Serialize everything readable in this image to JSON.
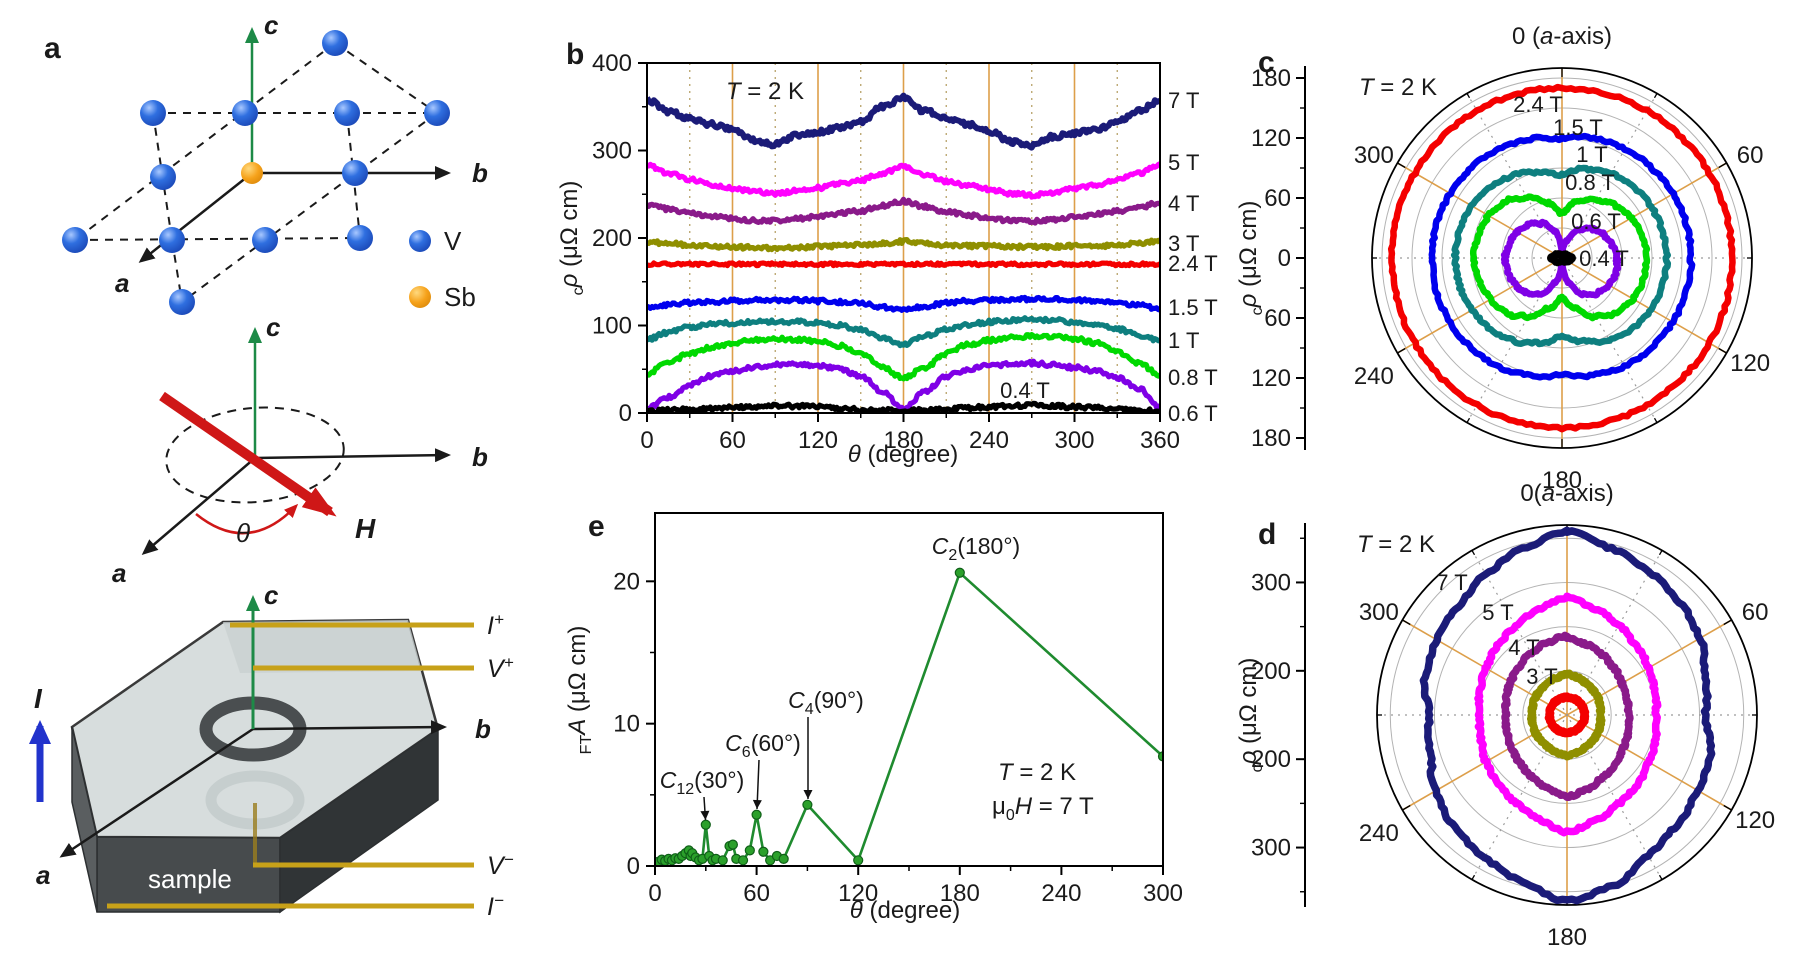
{
  "panel_a": {
    "label": "a",
    "legend": {
      "v_label": "V",
      "sb_label": "Sb"
    },
    "axis_a": "a",
    "axis_b": "b",
    "axis_c": "c",
    "field_vector_label": "H",
    "angle_label": "θ",
    "current_label": "I",
    "sample_label": "sample",
    "leads": [
      {
        "main": "I",
        "sup": "+"
      },
      {
        "main": "V",
        "sup": "+"
      },
      {
        "main": "V",
        "sup": "−"
      },
      {
        "main": "I",
        "sup": "−"
      }
    ],
    "colors": {
      "v_atom": "#2f6fe0",
      "sb_atom": "#f6a21b",
      "c_axis": "#1d8a47",
      "h_vector": "#cf1717",
      "current": "#2233cc",
      "lead": "#c7a119"
    }
  },
  "chart_data": [
    {
      "id": "b",
      "panel_label": "b",
      "type": "line",
      "title": {
        "it": "T",
        "rest": " = 2 K"
      },
      "xlabel": {
        "it": "θ",
        "rest": " (degree)"
      },
      "ylabel": {
        "it": "ρ",
        "sub": "c",
        "rest": " (μΩ cm)"
      },
      "xlim": [
        0,
        360
      ],
      "ylim": [
        0,
        400
      ],
      "xticks": [
        0,
        60,
        120,
        180,
        240,
        300,
        360
      ],
      "yticks": [
        0,
        100,
        200,
        300,
        400
      ],
      "grid": {
        "solid": [
          60,
          120,
          180,
          240,
          300
        ],
        "dotted": [
          30,
          90,
          150,
          210,
          270,
          330
        ],
        "solid_color": "#dd9f4a",
        "dotted_color": "#b8a26a"
      },
      "x_step": 15,
      "series": [
        {
          "name": "7 T",
          "color": "#1b1b78",
          "values": [
            358,
            345,
            337,
            330,
            324,
            312,
            307,
            318,
            321,
            326,
            333,
            350,
            360,
            345,
            337,
            330,
            322,
            310,
            306,
            316,
            320,
            324,
            333,
            345,
            357
          ]
        },
        {
          "name": "5 T",
          "color": "#ff00ff",
          "values": [
            283,
            274,
            267,
            261,
            257,
            253,
            251,
            254,
            257,
            262,
            266,
            274,
            282,
            272,
            265,
            260,
            256,
            251,
            249,
            252,
            256,
            261,
            266,
            274,
            283
          ]
        },
        {
          "name": "4 T",
          "color": "#8a1a8a",
          "values": [
            238,
            233,
            229,
            225,
            222,
            220,
            220,
            222,
            224,
            228,
            231,
            237,
            242,
            236,
            230,
            226,
            223,
            220,
            219,
            221,
            224,
            227,
            231,
            235,
            240
          ]
        },
        {
          "name": "3 T",
          "color": "#8f8f00",
          "values": [
            196,
            194,
            192,
            191,
            190,
            189,
            188,
            189,
            190,
            191,
            192,
            194,
            196,
            194,
            192,
            191,
            191,
            190,
            190,
            190,
            191,
            191,
            192,
            194,
            196
          ]
        },
        {
          "name": "2.4 T",
          "color": "#f40000",
          "values": [
            170,
            170,
            170,
            170,
            170,
            170,
            170,
            170,
            170,
            170,
            170,
            170,
            170,
            170,
            170,
            170,
            170,
            170,
            170,
            170,
            170,
            170,
            170,
            170,
            170
          ]
        },
        {
          "name": "1.5 T",
          "color": "#0000ee",
          "values": [
            120,
            124,
            126,
            127,
            128,
            129,
            129,
            129,
            128,
            127,
            125,
            121,
            117,
            122,
            126,
            128,
            129,
            130,
            130,
            130,
            129,
            128,
            126,
            123,
            119
          ]
        },
        {
          "name": "1 T",
          "color": "#0e7f7f",
          "values": [
            84,
            92,
            98,
            101,
            103,
            104,
            105,
            104,
            103,
            100,
            95,
            86,
            78,
            88,
            96,
            101,
            104,
            106,
            107,
            106,
            104,
            101,
            96,
            89,
            83
          ]
        },
        {
          "name": "0.8 T",
          "color": "#00d900",
          "values": [
            45,
            58,
            68,
            75,
            80,
            83,
            85,
            84,
            82,
            77,
            68,
            52,
            40,
            52,
            68,
            78,
            83,
            86,
            88,
            87,
            85,
            80,
            70,
            57,
            44
          ]
        },
        {
          "name": "0.6 T",
          "color": "#7f00e6",
          "values": [
            5,
            18,
            32,
            42,
            48,
            52,
            55,
            56,
            54,
            50,
            42,
            25,
            4,
            25,
            42,
            50,
            54,
            56,
            57,
            55,
            52,
            48,
            40,
            28,
            6
          ]
        },
        {
          "name": "0.4 T",
          "color": "#000000",
          "values": [
            2,
            3,
            4,
            5,
            6,
            7,
            8,
            8,
            7,
            5,
            4,
            3,
            2,
            3,
            4,
            6,
            7,
            8,
            9,
            8,
            7,
            6,
            4,
            3,
            2
          ]
        }
      ]
    },
    {
      "id": "c",
      "panel_label": "c",
      "type": "polar",
      "title": {
        "it": "T",
        "rest": " = 2 K"
      },
      "ylabel": {
        "it": "ρ",
        "sub": "c",
        "rest": " (μΩ cm)"
      },
      "top_label": {
        "pre": "0 (",
        "it": "a",
        "post": "-axis)"
      },
      "center_value": 0,
      "boundary_value": 190,
      "radial_ticks": [
        60,
        120,
        180
      ],
      "radial_minor": [
        30,
        90,
        150
      ],
      "center_tick_label": "0",
      "grid_circles": [
        30,
        60,
        90,
        120,
        150,
        180
      ],
      "angle_labels": [
        "60",
        "120",
        "180",
        "240",
        "300"
      ],
      "series_names": [
        "2.4 T",
        "1.5 T",
        "1 T",
        "0.8 T",
        "0.6 T",
        "0.4 T"
      ],
      "series_source": "same data as panel b series",
      "curve_labels": [
        {
          "text": "2.4 T",
          "color": "#f40000"
        },
        {
          "text": "1.5 T",
          "color": "#2222dd"
        },
        {
          "text": "1 T",
          "color": "#0e7f7f"
        },
        {
          "text": "0.8 T",
          "color": "#00cc00"
        },
        {
          "text": "0.6 T",
          "color": "#7f00e6"
        },
        {
          "text": "0.4 T",
          "color": "#000000"
        }
      ]
    },
    {
      "id": "d",
      "panel_label": "d",
      "type": "polar",
      "title": {
        "it": "T",
        "rest": " = 2 K"
      },
      "ylabel": {
        "it": "ρ",
        "sub": "c",
        "rest": " (μΩ cm)"
      },
      "top_label": {
        "pre": "0(",
        "it": "a",
        "post": "-axis)"
      },
      "center_value": 150,
      "boundary_value": 365,
      "radial_ticks": [
        200,
        300
      ],
      "radial_minor": [
        250,
        350
      ],
      "center_tick_label": "",
      "grid_circles": [
        200,
        250,
        300,
        350
      ],
      "angle_labels": [
        "60",
        "120",
        "180",
        "240",
        "300"
      ],
      "series_names": [
        "7 T",
        "5 T",
        "4 T",
        "3 T",
        "2.4 T"
      ],
      "series_source": "same data as panel b series",
      "curve_labels": [
        {
          "text": "7 T",
          "color": "#5f5fc8"
        },
        {
          "text": "5 T",
          "color": "#ff00ff"
        },
        {
          "text": "4 T",
          "color": "#8a1a8a"
        },
        {
          "text": "3 T",
          "color": "#8f8f00"
        }
      ]
    },
    {
      "id": "e",
      "panel_label": "e",
      "type": "line-scatter",
      "color": "#1f8b2f",
      "marker_fill": "#2ba02b",
      "marker_edge": "#0f5f18",
      "xlabel": {
        "it": "θ",
        "rest": " (degree)"
      },
      "ylabel": {
        "it": "A",
        "sub": "FT",
        "rest": " (μΩ cm)"
      },
      "xlim": [
        0,
        300
      ],
      "ylim": [
        0,
        24.8
      ],
      "xticks": [
        0,
        60,
        120,
        180,
        240,
        300
      ],
      "yticks": [
        0,
        10,
        20
      ],
      "points": [
        [
          2,
          0.3
        ],
        [
          4,
          0.45
        ],
        [
          6,
          0.35
        ],
        [
          8,
          0.5
        ],
        [
          10,
          0.4
        ],
        [
          12,
          0.55
        ],
        [
          14,
          0.5
        ],
        [
          16,
          0.7
        ],
        [
          18,
          0.9
        ],
        [
          20,
          1.1
        ],
        [
          21,
          0.7
        ],
        [
          22,
          0.9
        ],
        [
          24,
          0.6
        ],
        [
          26,
          0.4
        ],
        [
          28,
          0.5
        ],
        [
          30,
          2.9
        ],
        [
          32,
          0.7
        ],
        [
          34,
          0.4
        ],
        [
          36,
          0.5
        ],
        [
          40,
          0.4
        ],
        [
          44,
          1.4
        ],
        [
          46,
          1.5
        ],
        [
          48,
          0.5
        ],
        [
          52,
          0.4
        ],
        [
          56,
          1.1
        ],
        [
          60,
          3.6
        ],
        [
          64,
          1.0
        ],
        [
          68,
          0.4
        ],
        [
          72,
          0.7
        ],
        [
          76,
          0.5
        ],
        [
          90,
          4.3
        ],
        [
          120,
          0.4
        ],
        [
          180,
          20.6
        ],
        [
          300,
          7.7
        ]
      ],
      "annotations": [
        {
          "main": "C",
          "sub": "12",
          "rest": "(30°)"
        },
        {
          "main": "C",
          "sub": "6",
          "rest": "(60°)"
        },
        {
          "main": "C",
          "sub": "4",
          "rest": "(90°)"
        },
        {
          "main": "C",
          "sub": "2",
          "rest": "(180°)"
        }
      ],
      "notes": [
        {
          "it": "T",
          "rest": " = 2 K"
        },
        {
          "pre": "μ",
          "sub": "0",
          "it": "H",
          "rest": " = 7 T"
        }
      ]
    }
  ]
}
